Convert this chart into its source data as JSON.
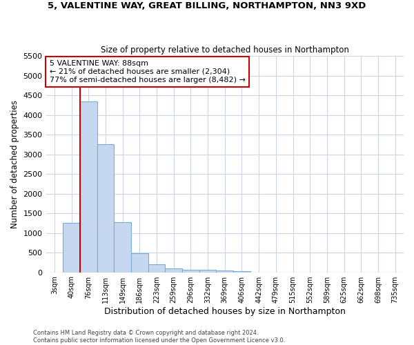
{
  "title_line1": "5, VALENTINE WAY, GREAT BILLING, NORTHAMPTON, NN3 9XD",
  "title_line2": "Size of property relative to detached houses in Northampton",
  "xlabel": "Distribution of detached houses by size in Northampton",
  "ylabel": "Number of detached properties",
  "categories": [
    "3sqm",
    "40sqm",
    "76sqm",
    "113sqm",
    "149sqm",
    "186sqm",
    "223sqm",
    "259sqm",
    "296sqm",
    "332sqm",
    "369sqm",
    "406sqm",
    "442sqm",
    "479sqm",
    "515sqm",
    "552sqm",
    "589sqm",
    "625sqm",
    "662sqm",
    "698sqm",
    "735sqm"
  ],
  "values": [
    0,
    1250,
    4350,
    3250,
    1280,
    480,
    200,
    100,
    70,
    55,
    50,
    30,
    0,
    0,
    0,
    0,
    0,
    0,
    0,
    0,
    0
  ],
  "bar_color": "#c5d8ef",
  "bar_edge_color": "#7aadd4",
  "red_line_index": 2,
  "annotation_line1": "5 VALENTINE WAY: 88sqm",
  "annotation_line2": "← 21% of detached houses are smaller (2,304)",
  "annotation_line3": "77% of semi-detached houses are larger (8,482) →",
  "annotation_box_color": "#ffffff",
  "annotation_box_edge": "#cc0000",
  "ylim": [
    0,
    5500
  ],
  "yticks": [
    0,
    500,
    1000,
    1500,
    2000,
    2500,
    3000,
    3500,
    4000,
    4500,
    5000,
    5500
  ],
  "footer_line1": "Contains HM Land Registry data © Crown copyright and database right 2024.",
  "footer_line2": "Contains public sector information licensed under the Open Government Licence v3.0.",
  "bg_color": "#ffffff",
  "grid_color": "#ccd6e8"
}
